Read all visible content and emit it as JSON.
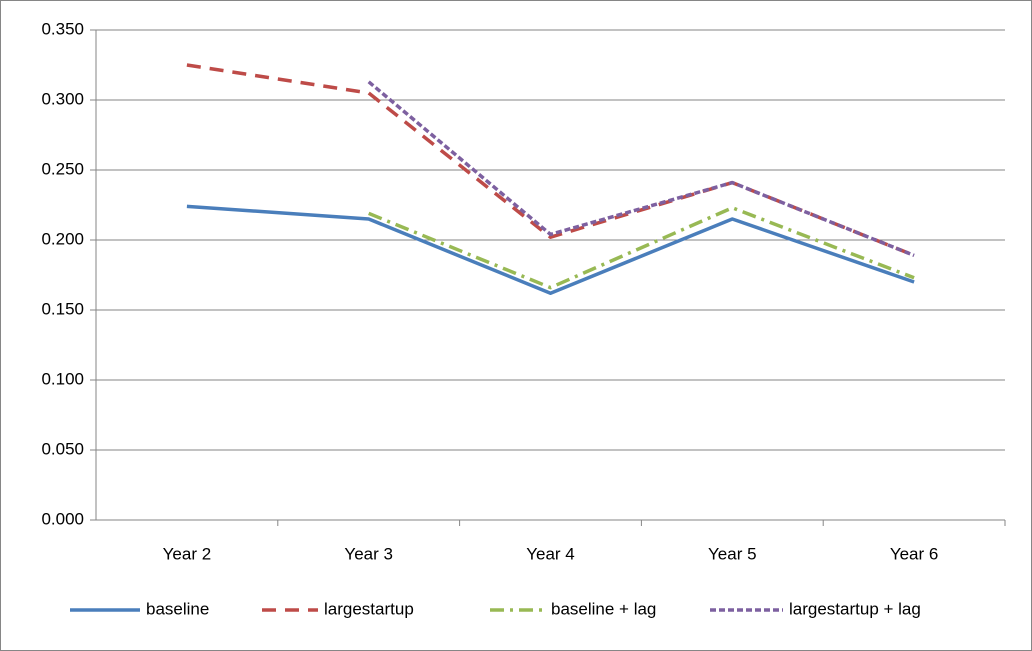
{
  "chart_data": {
    "type": "line",
    "categories": [
      "Year 2",
      "Year 3",
      "Year 4",
      "Year 5",
      "Year 6"
    ],
    "series": [
      {
        "name": "baseline",
        "color": "#4a7ebb",
        "dash": "none",
        "values": [
          0.224,
          0.215,
          0.162,
          0.215,
          0.17
        ]
      },
      {
        "name": "largestartup",
        "color": "#be4b48",
        "dash": "14 9",
        "values": [
          0.325,
          0.305,
          0.202,
          0.241,
          0.189
        ]
      },
      {
        "name": "baseline + lag",
        "color": "#98b954",
        "dash": "14 6 3 6",
        "values": [
          null,
          0.219,
          0.166,
          0.223,
          0.173
        ]
      },
      {
        "name": "largestartup + lag",
        "color": "#7d60a0",
        "dash": "6 3",
        "values": [
          null,
          0.313,
          0.204,
          0.241,
          0.189
        ]
      }
    ],
    "ylim": [
      0,
      0.35
    ],
    "yticks": [
      {
        "value": 0,
        "label": "0.000"
      },
      {
        "value": 0.05,
        "label": "0.050"
      },
      {
        "value": 0.1,
        "label": "0.100"
      },
      {
        "value": 0.15,
        "label": "0.150"
      },
      {
        "value": 0.2,
        "label": "0.200"
      },
      {
        "value": 0.25,
        "label": "0.250"
      },
      {
        "value": 0.3,
        "label": "0.300"
      },
      {
        "value": 0.35,
        "label": "0.350"
      }
    ],
    "grid": true,
    "legend": "bottom"
  }
}
